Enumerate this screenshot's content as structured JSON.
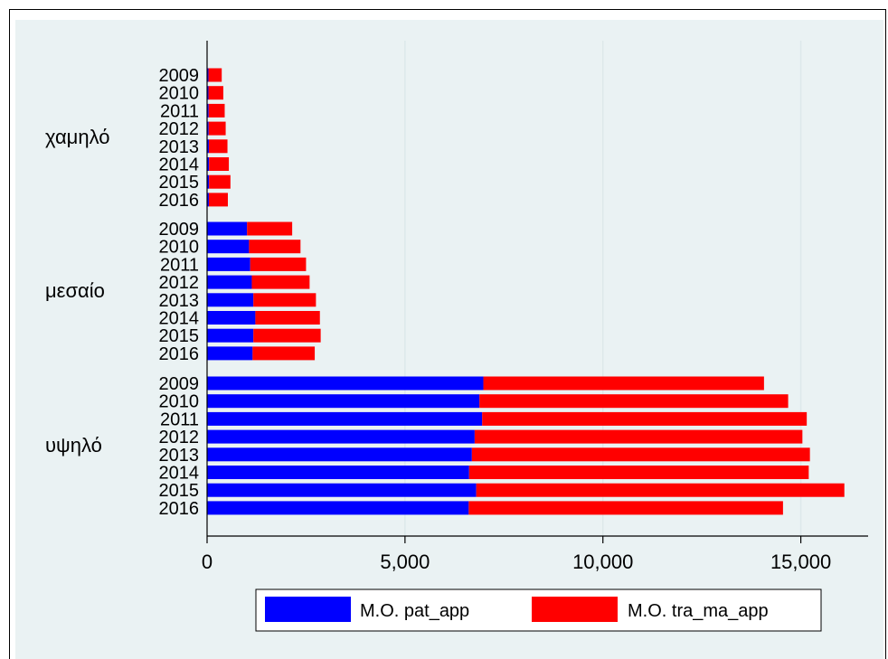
{
  "chart_data": {
    "type": "bar",
    "orientation": "horizontal",
    "stacked": true,
    "groups": [
      "χαμηλό",
      "μεσαίο",
      "υψηλό"
    ],
    "years": [
      "2009",
      "2010",
      "2011",
      "2012",
      "2013",
      "2014",
      "2015",
      "2016"
    ],
    "series": [
      {
        "name": "M.O. pat_app",
        "color": "#0000ff",
        "values": {
          "χαμηλό": [
            35,
            35,
            40,
            40,
            45,
            50,
            50,
            45
          ],
          "μεσαίο": [
            1010,
            1060,
            1090,
            1130,
            1170,
            1220,
            1170,
            1150
          ],
          "υψηλό": [
            6980,
            6880,
            6950,
            6760,
            6690,
            6620,
            6800,
            6610
          ]
        }
      },
      {
        "name": "M.O. tra_ma_app",
        "color": "#ff0000",
        "values": {
          "χαμηλό": [
            335,
            375,
            405,
            430,
            470,
            500,
            540,
            480
          ],
          "μεσαίο": [
            1140,
            1300,
            1410,
            1460,
            1580,
            1630,
            1700,
            1570
          ],
          "υψηλό": [
            7090,
            7800,
            8200,
            8280,
            8540,
            8580,
            9300,
            7940
          ]
        }
      }
    ],
    "xlim": [
      0,
      16700
    ],
    "xticks": [
      0,
      5000,
      10000,
      15000
    ],
    "xtick_labels": [
      "0",
      "5,000",
      "10,000",
      "15,000"
    ],
    "grid": true,
    "legend_position": "bottom"
  }
}
